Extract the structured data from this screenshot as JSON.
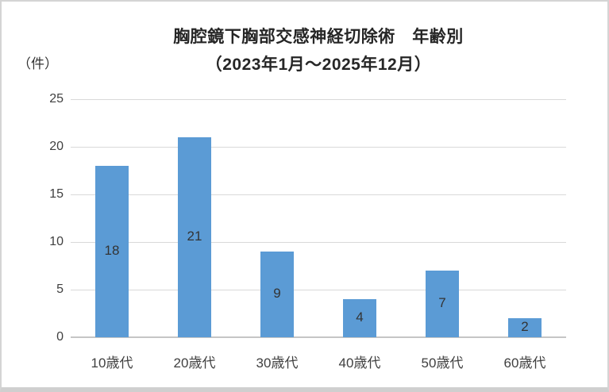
{
  "chart_data": {
    "type": "bar",
    "title": "胸腔鏡下胸部交感神経切除術　年齢別",
    "subtitle": "（2023年1月～2025年12月）",
    "unit_label": "（件）",
    "categories": [
      "10歳代",
      "20歳代",
      "30歳代",
      "40歳代",
      "50歳代",
      "60歳代"
    ],
    "values": [
      18,
      21,
      9,
      4,
      7,
      2
    ],
    "y_ticks": [
      0,
      5,
      10,
      15,
      20,
      25
    ],
    "ylim": [
      0,
      25
    ],
    "xlabel": "",
    "ylabel": "（件）",
    "grid": "horizontal",
    "legend": "none",
    "data_labels": "center",
    "colors": {
      "bar_fill": "#5b9bd5",
      "gridline": "#d9d9d9",
      "axis_line": "#c6c6c6",
      "title_text": "#262626",
      "label_text": "#333333",
      "tick_text": "#404040",
      "frame_border": "#d4d4d4",
      "background": "#ffffff"
    }
  }
}
